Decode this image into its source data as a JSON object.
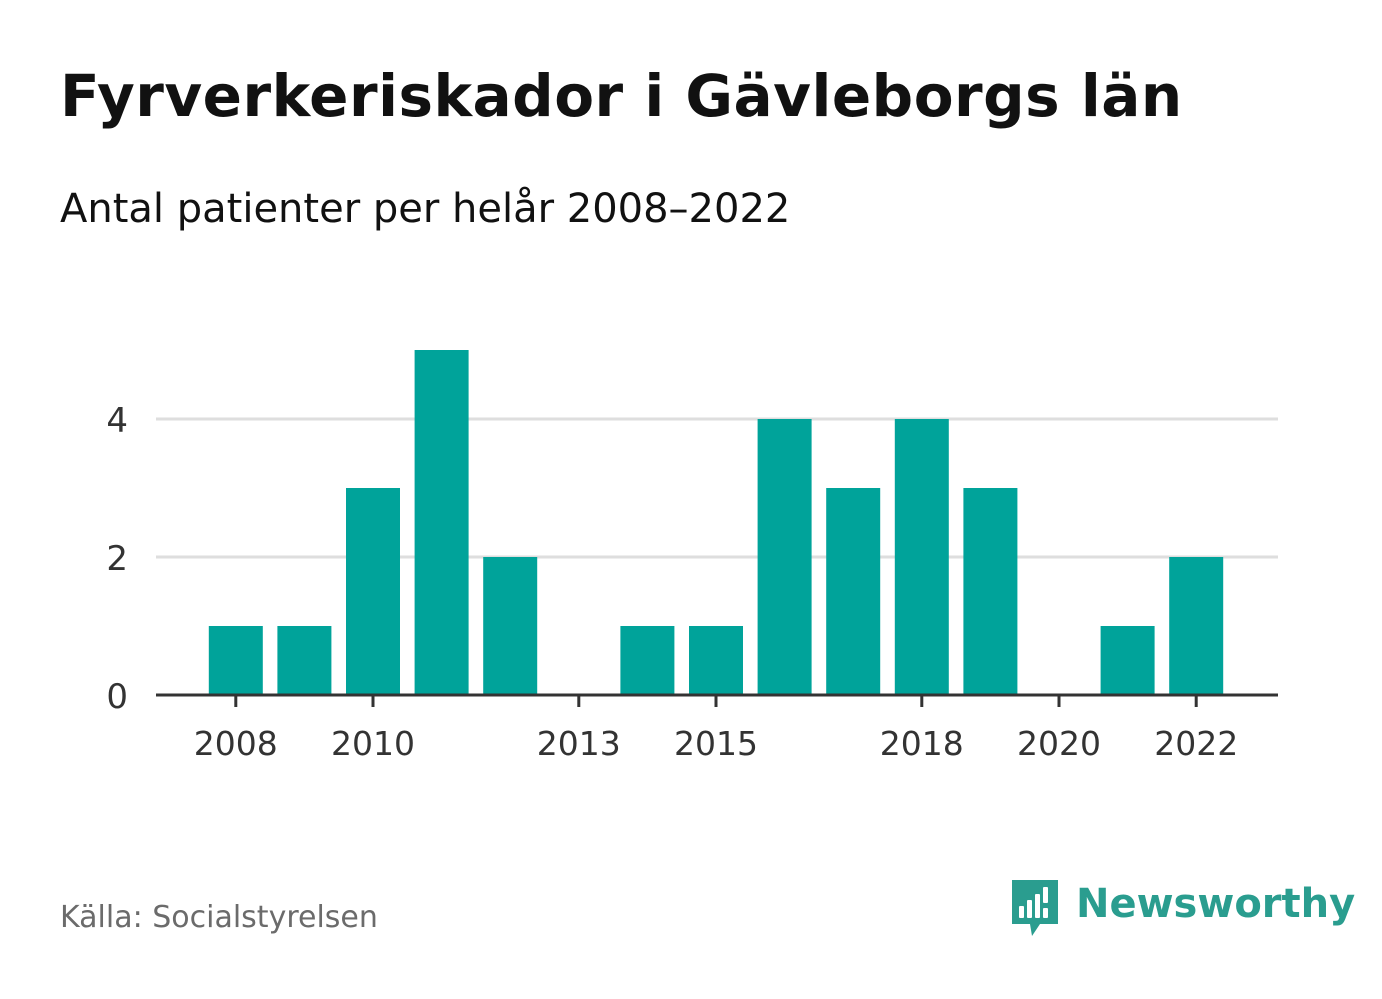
{
  "header": {
    "title": "Fyrverkeriskador i Gävleborgs län",
    "subtitle": "Antal patienter per helår 2008–2022"
  },
  "footer": {
    "source": "Källa: Socialstyrelsen",
    "brand": "Newsworthy",
    "brand_icon": "bar-chart-speech-bubble-icon"
  },
  "colors": {
    "bar": "#00a39a",
    "grid": "#dedede",
    "axis": "#333333",
    "brand": "#2a9d8f"
  },
  "chart_data": {
    "type": "bar",
    "categories": [
      "2008",
      "2009",
      "2010",
      "2011",
      "2012",
      "2013",
      "2014",
      "2015",
      "2016",
      "2017",
      "2018",
      "2019",
      "2020",
      "2021",
      "2022"
    ],
    "values": [
      1,
      1,
      3,
      5,
      2,
      0,
      1,
      1,
      4,
      3,
      4,
      3,
      0,
      1,
      2
    ],
    "x_tick_labels": [
      "2008",
      "2010",
      "2013",
      "2015",
      "2018",
      "2020",
      "2022"
    ],
    "y_ticks": [
      0,
      2,
      4
    ],
    "ylim": [
      0,
      5
    ],
    "xlabel": "",
    "ylabel": "",
    "grid": true,
    "legend": "none"
  }
}
